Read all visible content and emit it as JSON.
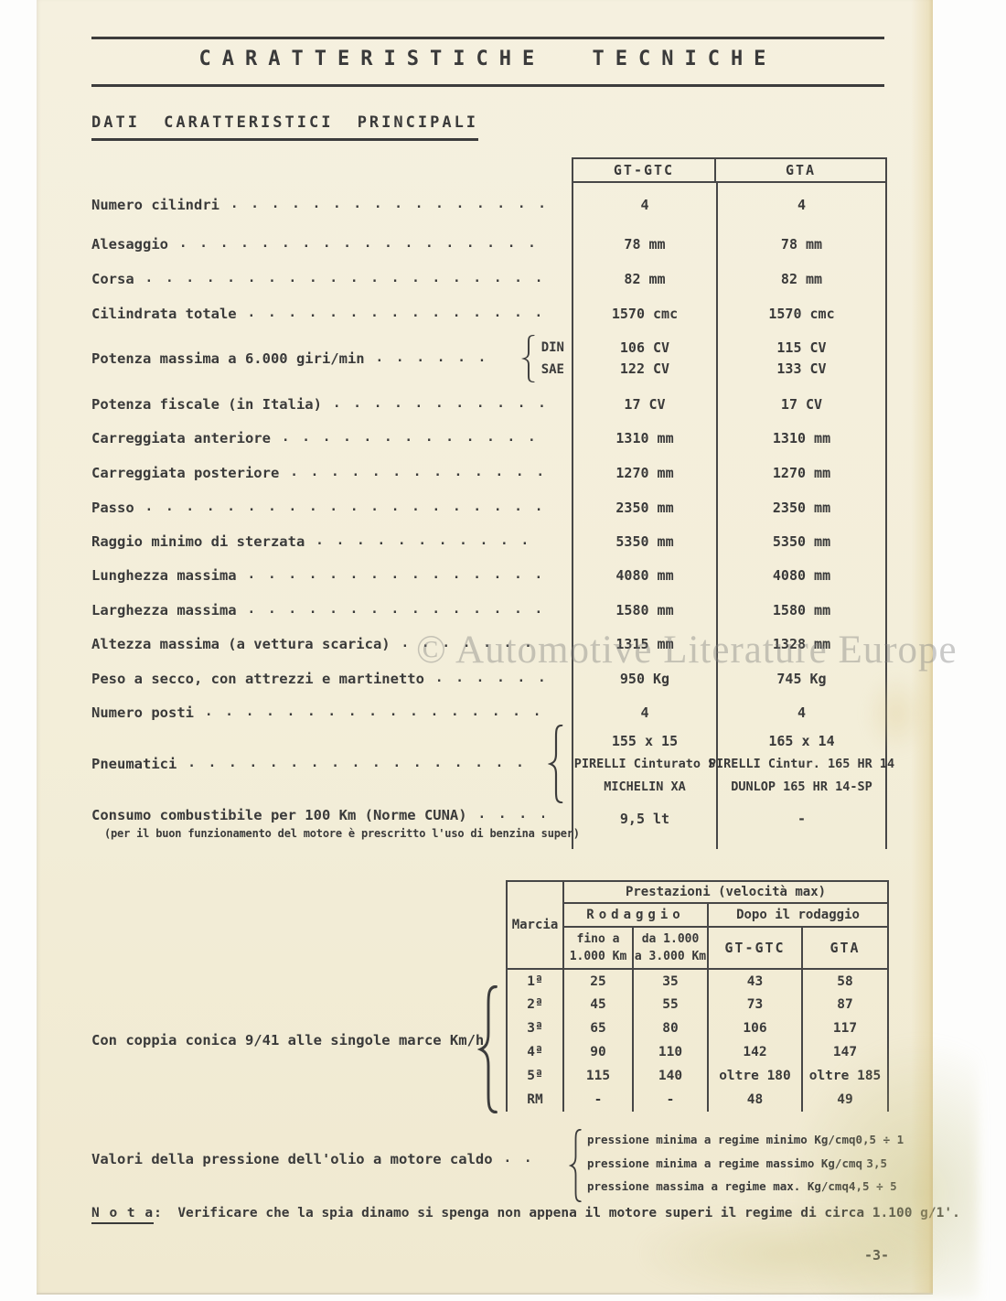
{
  "page": {
    "title": "CARATTERISTICHE TECNICHE",
    "section_title": "DATI CARATTERISTICI PRINCIPALI",
    "page_number": "-3-",
    "watermark": "© Automotive Literature Europe"
  },
  "spec_table": {
    "columns": [
      "GT-GTC",
      "GTA"
    ],
    "rows": [
      {
        "type": "simple",
        "label": "Numero cilindri",
        "values": [
          "4",
          "4"
        ]
      },
      {
        "type": "simple",
        "label": "Alesaggio",
        "values": [
          "78 mm",
          "78 mm"
        ]
      },
      {
        "type": "simple",
        "label": "Corsa",
        "values": [
          "82 mm",
          "82 mm"
        ]
      },
      {
        "type": "simple",
        "label": "Cilindrata totale",
        "values": [
          "1570 cmc",
          "1570 cmc"
        ]
      },
      {
        "type": "dual",
        "label": "Potenza massima a 6.000 giri/min",
        "sub_labels": [
          "DIN",
          "SAE"
        ],
        "values": [
          [
            "106 CV",
            "122 CV"
          ],
          [
            "115 CV",
            "133 CV"
          ]
        ]
      },
      {
        "type": "simple",
        "label": "Potenza fiscale (in Italia)",
        "values": [
          "17 CV",
          "17 CV"
        ]
      },
      {
        "type": "simple",
        "label": "Carreggiata anteriore",
        "values": [
          "1310 mm",
          "1310 mm"
        ]
      },
      {
        "type": "simple",
        "label": "Carreggiata posteriore",
        "values": [
          "1270 mm",
          "1270 mm"
        ]
      },
      {
        "type": "simple",
        "label": "Passo",
        "values": [
          "2350 mm",
          "2350 mm"
        ]
      },
      {
        "type": "simple",
        "label": "Raggio minimo di sterzata",
        "values": [
          "5350 mm",
          "5350 mm"
        ]
      },
      {
        "type": "simple",
        "label": "Lunghezza massima",
        "values": [
          "4080 mm",
          "4080 mm"
        ]
      },
      {
        "type": "simple",
        "label": "Larghezza massima",
        "values": [
          "1580 mm",
          "1580 mm"
        ]
      },
      {
        "type": "simple",
        "label": "Altezza massima (a vettura scarica)",
        "values": [
          "1315 mm",
          "1328 mm"
        ]
      },
      {
        "type": "simple",
        "label": "Peso a secco, con attrezzi e martinetto",
        "values": [
          "950 Kg",
          "745 Kg"
        ]
      },
      {
        "type": "simple",
        "label": "Numero posti",
        "values": [
          "4",
          "4"
        ]
      },
      {
        "type": "stack3",
        "label": "Pneumatici",
        "values": [
          [
            "155 x 15",
            "PIRELLI Cinturato S",
            "MICHELIN XA"
          ],
          [
            "165 x 14",
            "PIRELLI Cintur. 165 HR 14",
            "DUNLOP 165 HR 14-SP"
          ]
        ]
      },
      {
        "type": "consumo",
        "label": "Consumo combustibile per 100 Km (Norme CUNA)",
        "note": "(per il buon funzionamento del motore è prescritto l'uso di benzina super)",
        "values": [
          "9,5 lt",
          "-"
        ]
      }
    ]
  },
  "prestazioni": {
    "marcia_label": "Marcia",
    "title": "Prestazioni (velocità max)",
    "rodaggio_label": "Rodaggio",
    "dopo_label": "Dopo il rodaggio",
    "col_fino": [
      "fino a",
      "1.000 Km"
    ],
    "col_da": [
      "da 1.000",
      "a 3.000 Km"
    ],
    "col_gtgtc": "GT-GTC",
    "col_gta": "GTA",
    "rows": [
      [
        "1ª",
        "25",
        "35",
        "43",
        "58"
      ],
      [
        "2ª",
        "45",
        "55",
        "73",
        "87"
      ],
      [
        "3ª",
        "65",
        "80",
        "106",
        "117"
      ],
      [
        "4ª",
        "90",
        "110",
        "142",
        "147"
      ],
      [
        "5ª",
        "115",
        "140",
        "oltre 180",
        "oltre 185"
      ],
      [
        "RM",
        "-",
        "-",
        "48",
        "49"
      ]
    ]
  },
  "con_coppia": {
    "label": "Con coppia conica 9/41 alle singole marce Km/h"
  },
  "oil_pressure": {
    "label": "Valori della pressione dell'olio a motore caldo",
    "lines": [
      {
        "text": "pressione minima a regime minimo  Kg/cmq",
        "value": "0,5 ÷ 1"
      },
      {
        "text": "pressione minima a regime massimo Kg/cmq",
        "value": "3,5"
      },
      {
        "text": "pressione massima a regime max.  Kg/cmq",
        "value": "4,5 ÷ 5"
      }
    ]
  },
  "nota": {
    "label": "N o t a",
    "colon": ":",
    "text": "Verificare che la spia dinamo si spenga non appena il motore superi il regime di circa 1.100 g/1'."
  },
  "colors": {
    "ink": "#3a3a3a",
    "paper": "#f3eeda",
    "watermark_gray": "#7c7c7c"
  }
}
